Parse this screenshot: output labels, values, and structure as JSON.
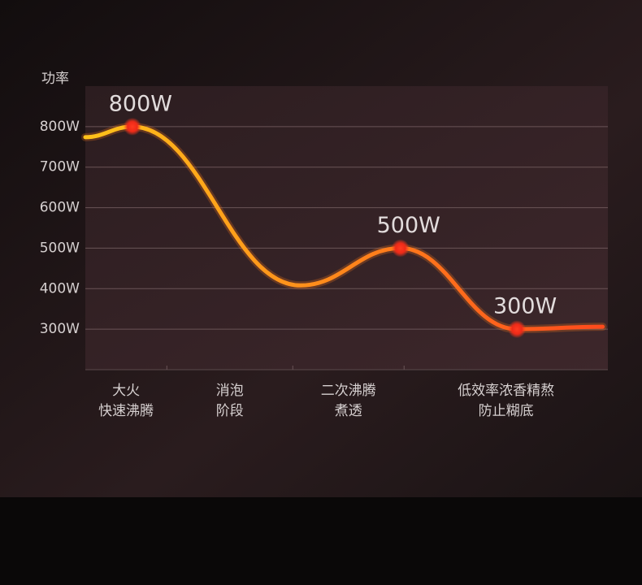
{
  "chart_data": {
    "type": "line",
    "y_label": "功率",
    "categories": [
      [
        "大火",
        "快速沸腾"
      ],
      [
        "消泡",
        "阶段"
      ],
      [
        "二次沸腾",
        "煮透"
      ],
      [
        "低效率浓香精熬",
        "防止糊底"
      ]
    ],
    "xlim": [
      0,
      100
    ],
    "xticks": [
      15.6,
      39.7,
      61
    ],
    "ylim": [
      200,
      900
    ],
    "yticks": [
      {
        "value": 300,
        "label": "300W"
      },
      {
        "value": 400,
        "label": "400W"
      },
      {
        "value": 500,
        "label": "500W"
      },
      {
        "value": 600,
        "label": "600W"
      },
      {
        "value": 700,
        "label": "700W"
      },
      {
        "value": 800,
        "label": "800W"
      }
    ],
    "grid": true,
    "series": [
      {
        "x": [
          0,
          9,
          41.2,
          60.3,
          82.6,
          99
        ],
        "values": [
          774,
          800,
          408,
          500,
          300,
          306
        ],
        "value_labels": [
          null,
          "800W",
          null,
          "500W",
          "300W",
          null
        ],
        "color": [
          "#ffc21a",
          "#ff4a1c"
        ]
      }
    ]
  }
}
